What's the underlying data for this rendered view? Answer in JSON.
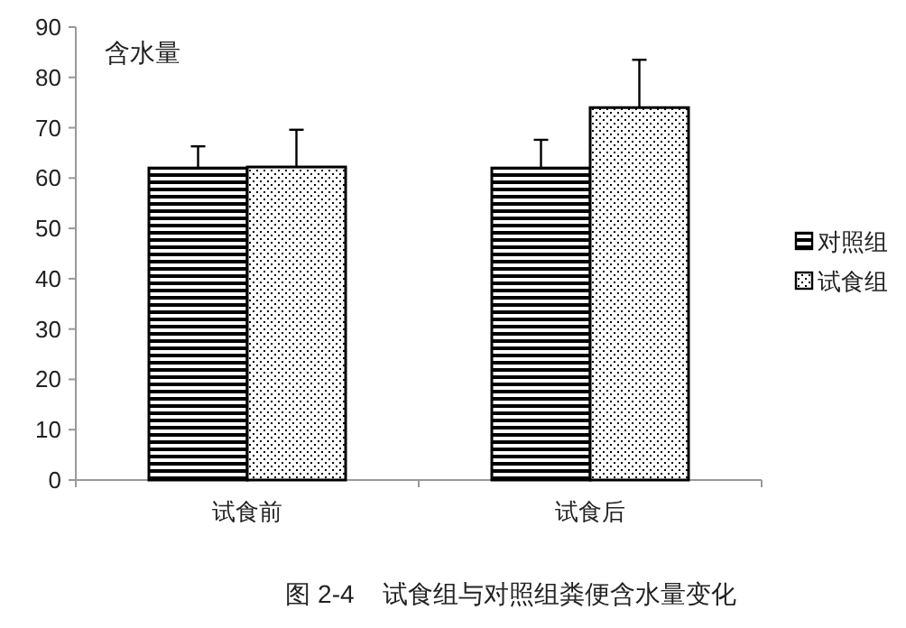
{
  "chart_data": {
    "type": "bar",
    "title": "图 2-4    试食组与对照组粪便含水量变化",
    "ylabel": "含水量",
    "categories": [
      "试食前",
      "试食后"
    ],
    "series": [
      {
        "name": "对照组",
        "color": "#000000",
        "values": [
          62,
          62
        ],
        "errors": [
          [
            62,
            66.3
          ],
          [
            62,
            67.6
          ]
        ]
      },
      {
        "name": "试食组",
        "color": "#000000",
        "values": [
          62.2,
          74
        ],
        "errors": [
          [
            62.2,
            69.6
          ],
          [
            74,
            83.5
          ]
        ]
      }
    ],
    "ylim": [
      0,
      90
    ],
    "yticks": [
      0,
      10,
      20,
      30,
      40,
      50,
      60,
      70,
      80,
      90
    ],
    "grid": false,
    "legend": "right"
  }
}
